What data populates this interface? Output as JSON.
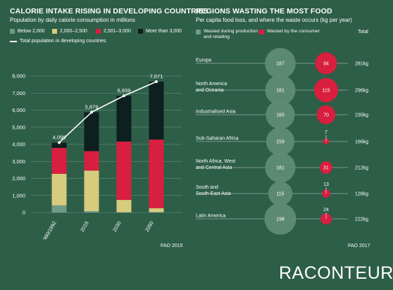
{
  "left": {
    "title": "CALORIE INTAKE RISING IN DEVELOPING COUNTRIES",
    "subtitle": "Population by daily calorie consumption in millions",
    "legend": [
      {
        "label": "Below 2,000",
        "color": "#6f9a88"
      },
      {
        "label": "2,000–2,500",
        "color": "#d7cb7d"
      },
      {
        "label": "2,501–3,000",
        "color": "#d81f3f"
      },
      {
        "label": "More than 3,000",
        "color": "#0e1f1f"
      }
    ],
    "line_legend": "Total population in developing countries",
    "source": "FAO 2015"
  },
  "right": {
    "title": "REGIONS WASTING THE MOST FOOD",
    "subtitle": "Per capita food loss, and where the waste occurs (kg per year)",
    "legend_production": "Wasted during production and retailing",
    "legend_consumer": "Wasted by the consumer",
    "total_header": "Total",
    "source": "FAO 2017"
  },
  "brand": "RACONTEUR",
  "colors": {
    "background": "#2d5e48",
    "production": "#5f8b76",
    "consumer": "#d81f3f"
  },
  "chart_data": [
    {
      "type": "bar",
      "stacked": true,
      "categories": [
        "1990/1992",
        "2015",
        "2030",
        "2050"
      ],
      "series": [
        {
          "name": "Below 2,000",
          "values": [
            420,
            80,
            20,
            30
          ]
        },
        {
          "name": "2,000–2,500",
          "values": [
            1850,
            2380,
            720,
            230
          ]
        },
        {
          "name": "2,501–3,000",
          "values": [
            1520,
            1140,
            3420,
            4020
          ]
        },
        {
          "name": "More than 3,000",
          "values": [
            300,
            2280,
            2680,
            3390
          ]
        }
      ],
      "line": {
        "name": "Total population in developing countries",
        "values": [
          4099,
          5879,
          6839,
          7671
        ],
        "labels": [
          "4,099",
          "5,879",
          "6,839",
          "7,671"
        ]
      },
      "ylim": [
        0,
        8000
      ],
      "yticks": [
        0,
        1000,
        2000,
        3000,
        4000,
        5000,
        6000,
        7000,
        8000
      ],
      "ytick_labels": [
        "0",
        "1,000",
        "2,000",
        "3,000",
        "4,000",
        "5,000",
        "6,000",
        "7,000",
        "8,000"
      ]
    },
    {
      "type": "bubble",
      "regions": [
        {
          "name": [
            "Europe"
          ],
          "production": 187,
          "consumer": 94,
          "total": "281kg"
        },
        {
          "name": [
            "North America",
            "and Oceania"
          ],
          "production": 181,
          "consumer": 115,
          "total": "296kg"
        },
        {
          "name": [
            "Industrialised Asia"
          ],
          "production": 165,
          "consumer": 70,
          "total": "235kg"
        },
        {
          "name": [
            "Sub-Saharan Africa"
          ],
          "production": 159,
          "consumer": 7,
          "total": "166kg"
        },
        {
          "name": [
            "North Africa, West",
            "and Central Asia"
          ],
          "production": 181,
          "consumer": 31,
          "total": "212kg"
        },
        {
          "name": [
            "South and",
            "South-East Asia"
          ],
          "production": 115,
          "consumer": 13,
          "total": "128kg"
        },
        {
          "name": [
            "Latin America"
          ],
          "production": 198,
          "consumer": 24,
          "total": "222kg"
        }
      ]
    }
  ]
}
